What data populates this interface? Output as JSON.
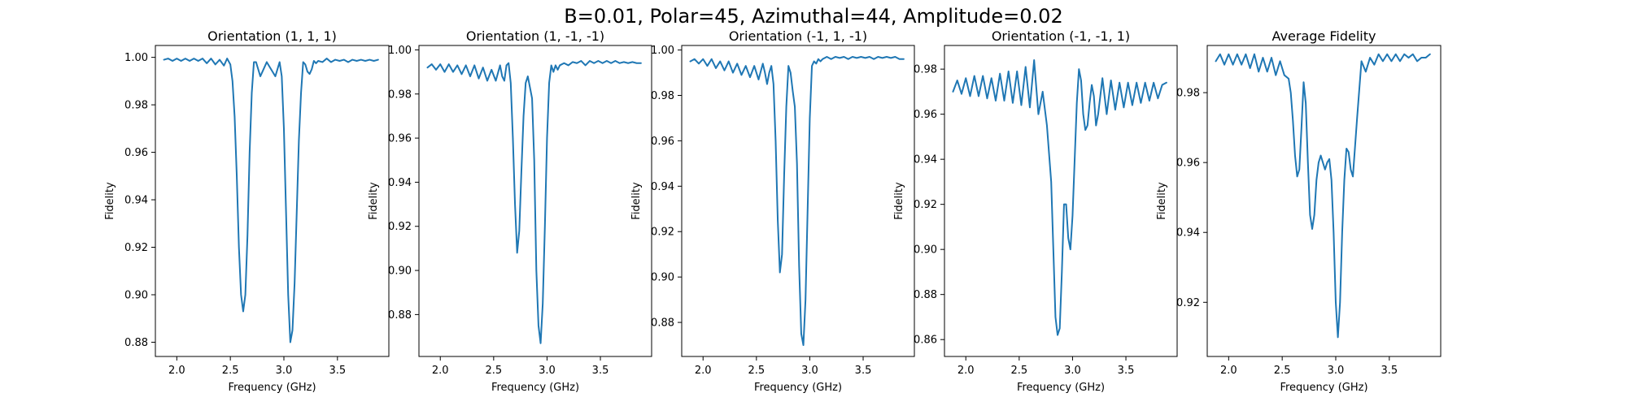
{
  "figure": {
    "title": "B=0.01, Polar=45, Azimuthal=44, Amplitude=0.02"
  },
  "colors": {
    "line": "#1f77b4",
    "axes": "#000000",
    "background": "#ffffff"
  },
  "chart_data": [
    {
      "type": "line",
      "title": "Orientation (1, 1, 1)",
      "xlabel": "Frequency (GHz)",
      "ylabel": "Fidelity",
      "xlim": [
        1.8,
        3.98
      ],
      "ylim": [
        0.874,
        1.005
      ],
      "xticks": [
        2.0,
        2.5,
        3.0,
        3.5
      ],
      "yticks": [
        0.88,
        0.9,
        0.92,
        0.94,
        0.96,
        0.98,
        1.0
      ],
      "grid": false,
      "series": [
        {
          "x": [
            1.88,
            1.92,
            1.96,
            2.0,
            2.04,
            2.08,
            2.12,
            2.16,
            2.2,
            2.24,
            2.28,
            2.32,
            2.36,
            2.4,
            2.44,
            2.47,
            2.5,
            2.52,
            2.54,
            2.56,
            2.58,
            2.6,
            2.62,
            2.64,
            2.66,
            2.68,
            2.7,
            2.72,
            2.74,
            2.76,
            2.78,
            2.8,
            2.84,
            2.88,
            2.92,
            2.96,
            2.98,
            3.0,
            3.02,
            3.04,
            3.06,
            3.08,
            3.1,
            3.12,
            3.14,
            3.16,
            3.18,
            3.2,
            3.22,
            3.24,
            3.26,
            3.28,
            3.3,
            3.32,
            3.36,
            3.4,
            3.44,
            3.48,
            3.52,
            3.56,
            3.6,
            3.64,
            3.68,
            3.72,
            3.76,
            3.8,
            3.84,
            3.88
          ],
          "y": [
            0.999,
            0.9995,
            0.9985,
            0.9995,
            0.9985,
            0.9995,
            0.9985,
            0.9995,
            0.9985,
            0.9995,
            0.9975,
            0.9995,
            0.997,
            0.999,
            0.9965,
            0.9995,
            0.997,
            0.99,
            0.975,
            0.95,
            0.92,
            0.9,
            0.893,
            0.9,
            0.925,
            0.96,
            0.985,
            0.998,
            0.998,
            0.995,
            0.992,
            0.994,
            0.998,
            0.995,
            0.992,
            0.998,
            0.992,
            0.97,
            0.935,
            0.9,
            0.88,
            0.885,
            0.905,
            0.935,
            0.965,
            0.985,
            0.998,
            0.997,
            0.994,
            0.993,
            0.995,
            0.9985,
            0.9975,
            0.9985,
            0.998,
            0.9995,
            0.998,
            0.999,
            0.9985,
            0.999,
            0.998,
            0.999,
            0.9985,
            0.999,
            0.9985,
            0.999,
            0.9985,
            0.999
          ]
        }
      ]
    },
    {
      "type": "line",
      "title": "Orientation (1, -1, -1)",
      "xlabel": "Frequency (GHz)",
      "ylabel": "Fidelity",
      "xlim": [
        1.8,
        3.98
      ],
      "ylim": [
        0.861,
        1.002
      ],
      "xticks": [
        2.0,
        2.5,
        3.0,
        3.5
      ],
      "yticks": [
        0.88,
        0.9,
        0.92,
        0.94,
        0.96,
        0.98,
        1.0
      ],
      "grid": false,
      "series": [
        {
          "x": [
            1.88,
            1.92,
            1.96,
            2.0,
            2.04,
            2.08,
            2.12,
            2.16,
            2.2,
            2.24,
            2.28,
            2.32,
            2.36,
            2.4,
            2.44,
            2.48,
            2.52,
            2.56,
            2.58,
            2.6,
            2.62,
            2.64,
            2.66,
            2.68,
            2.7,
            2.72,
            2.74,
            2.76,
            2.78,
            2.8,
            2.82,
            2.84,
            2.86,
            2.88,
            2.9,
            2.92,
            2.94,
            2.96,
            2.98,
            3.0,
            3.02,
            3.04,
            3.06,
            3.08,
            3.1,
            3.12,
            3.16,
            3.2,
            3.24,
            3.28,
            3.32,
            3.36,
            3.4,
            3.44,
            3.48,
            3.52,
            3.56,
            3.6,
            3.64,
            3.68,
            3.72,
            3.76,
            3.8,
            3.84,
            3.88
          ],
          "y": [
            0.992,
            0.9935,
            0.991,
            0.9935,
            0.99,
            0.9935,
            0.99,
            0.993,
            0.989,
            0.993,
            0.988,
            0.993,
            0.987,
            0.992,
            0.986,
            0.991,
            0.986,
            0.993,
            0.988,
            0.986,
            0.993,
            0.994,
            0.985,
            0.96,
            0.93,
            0.908,
            0.918,
            0.945,
            0.97,
            0.985,
            0.988,
            0.983,
            0.978,
            0.95,
            0.9,
            0.875,
            0.867,
            0.885,
            0.92,
            0.96,
            0.985,
            0.993,
            0.99,
            0.993,
            0.991,
            0.993,
            0.994,
            0.993,
            0.9945,
            0.994,
            0.995,
            0.993,
            0.995,
            0.994,
            0.995,
            0.994,
            0.995,
            0.994,
            0.995,
            0.994,
            0.9945,
            0.994,
            0.9945,
            0.994,
            0.994
          ]
        }
      ]
    },
    {
      "type": "line",
      "title": "Orientation (-1, 1, -1)",
      "xlabel": "Frequency (GHz)",
      "ylabel": "Fidelity",
      "xlim": [
        1.8,
        3.98
      ],
      "ylim": [
        0.865,
        1.002
      ],
      "xticks": [
        2.0,
        2.5,
        3.0,
        3.5
      ],
      "yticks": [
        0.88,
        0.9,
        0.92,
        0.94,
        0.96,
        0.98,
        1.0
      ],
      "grid": false,
      "series": [
        {
          "x": [
            1.88,
            1.92,
            1.96,
            2.0,
            2.04,
            2.08,
            2.12,
            2.16,
            2.2,
            2.24,
            2.28,
            2.32,
            2.36,
            2.4,
            2.44,
            2.48,
            2.52,
            2.56,
            2.58,
            2.6,
            2.62,
            2.64,
            2.66,
            2.68,
            2.7,
            2.72,
            2.74,
            2.76,
            2.78,
            2.8,
            2.82,
            2.84,
            2.86,
            2.88,
            2.9,
            2.92,
            2.94,
            2.96,
            2.98,
            3.0,
            3.02,
            3.04,
            3.06,
            3.08,
            3.1,
            3.12,
            3.16,
            3.2,
            3.24,
            3.28,
            3.32,
            3.36,
            3.4,
            3.44,
            3.48,
            3.52,
            3.56,
            3.6,
            3.64,
            3.68,
            3.72,
            3.76,
            3.8,
            3.84,
            3.88
          ],
          "y": [
            0.995,
            0.996,
            0.994,
            0.996,
            0.993,
            0.996,
            0.992,
            0.995,
            0.991,
            0.995,
            0.99,
            0.994,
            0.989,
            0.993,
            0.988,
            0.993,
            0.987,
            0.994,
            0.99,
            0.985,
            0.99,
            0.993,
            0.985,
            0.96,
            0.925,
            0.902,
            0.91,
            0.945,
            0.975,
            0.993,
            0.99,
            0.982,
            0.975,
            0.95,
            0.905,
            0.875,
            0.87,
            0.89,
            0.93,
            0.97,
            0.993,
            0.995,
            0.994,
            0.996,
            0.995,
            0.996,
            0.997,
            0.996,
            0.997,
            0.9965,
            0.997,
            0.996,
            0.997,
            0.9965,
            0.997,
            0.9965,
            0.997,
            0.996,
            0.997,
            0.9965,
            0.997,
            0.9965,
            0.997,
            0.996,
            0.996
          ]
        }
      ]
    },
    {
      "type": "line",
      "title": "Orientation (-1, -1, 1)",
      "xlabel": "Frequency (GHz)",
      "ylabel": "Fidelity",
      "xlim": [
        1.8,
        3.98
      ],
      "ylim": [
        0.8525,
        0.9905
      ],
      "xticks": [
        2.0,
        2.5,
        3.0,
        3.5
      ],
      "yticks": [
        0.86,
        0.88,
        0.9,
        0.92,
        0.94,
        0.96,
        0.98
      ],
      "grid": false,
      "series": [
        {
          "x": [
            1.88,
            1.92,
            1.96,
            2.0,
            2.04,
            2.08,
            2.12,
            2.16,
            2.2,
            2.24,
            2.28,
            2.32,
            2.36,
            2.4,
            2.44,
            2.48,
            2.52,
            2.56,
            2.6,
            2.64,
            2.68,
            2.72,
            2.76,
            2.8,
            2.82,
            2.84,
            2.86,
            2.88,
            2.9,
            2.92,
            2.94,
            2.96,
            2.98,
            3.0,
            3.02,
            3.04,
            3.06,
            3.08,
            3.1,
            3.12,
            3.14,
            3.16,
            3.18,
            3.2,
            3.22,
            3.24,
            3.28,
            3.32,
            3.36,
            3.4,
            3.44,
            3.48,
            3.52,
            3.56,
            3.6,
            3.64,
            3.68,
            3.72,
            3.76,
            3.8,
            3.84,
            3.88
          ],
          "y": [
            0.97,
            0.975,
            0.969,
            0.976,
            0.968,
            0.977,
            0.968,
            0.977,
            0.967,
            0.976,
            0.966,
            0.978,
            0.966,
            0.979,
            0.965,
            0.979,
            0.964,
            0.981,
            0.963,
            0.984,
            0.96,
            0.97,
            0.955,
            0.93,
            0.9,
            0.87,
            0.862,
            0.865,
            0.89,
            0.92,
            0.92,
            0.905,
            0.9,
            0.915,
            0.94,
            0.965,
            0.98,
            0.975,
            0.96,
            0.953,
            0.955,
            0.965,
            0.973,
            0.968,
            0.955,
            0.96,
            0.976,
            0.96,
            0.975,
            0.962,
            0.974,
            0.963,
            0.974,
            0.964,
            0.974,
            0.965,
            0.974,
            0.966,
            0.974,
            0.967,
            0.973,
            0.974
          ]
        }
      ]
    },
    {
      "type": "line",
      "title": "Average Fidelity",
      "xlabel": "Frequency (GHz)",
      "ylabel": "Fidelity",
      "xlim": [
        1.8,
        3.98
      ],
      "ylim": [
        0.9045,
        0.9935
      ],
      "xticks": [
        2.0,
        2.5,
        3.0,
        3.5
      ],
      "yticks": [
        0.92,
        0.94,
        0.96,
        0.98
      ],
      "grid": false,
      "series": [
        {
          "x": [
            1.88,
            1.92,
            1.96,
            2.0,
            2.04,
            2.08,
            2.12,
            2.16,
            2.2,
            2.24,
            2.28,
            2.32,
            2.36,
            2.4,
            2.44,
            2.48,
            2.52,
            2.56,
            2.58,
            2.6,
            2.62,
            2.64,
            2.66,
            2.68,
            2.7,
            2.72,
            2.74,
            2.76,
            2.78,
            2.8,
            2.82,
            2.84,
            2.86,
            2.88,
            2.9,
            2.92,
            2.94,
            2.96,
            2.98,
            3.0,
            3.02,
            3.04,
            3.06,
            3.08,
            3.1,
            3.12,
            3.14,
            3.16,
            3.2,
            3.24,
            3.28,
            3.32,
            3.36,
            3.4,
            3.44,
            3.48,
            3.52,
            3.56,
            3.6,
            3.64,
            3.68,
            3.72,
            3.76,
            3.8,
            3.84,
            3.88
          ],
          "y": [
            0.989,
            0.991,
            0.988,
            0.991,
            0.988,
            0.991,
            0.988,
            0.991,
            0.987,
            0.991,
            0.986,
            0.99,
            0.986,
            0.99,
            0.985,
            0.989,
            0.985,
            0.984,
            0.98,
            0.972,
            0.962,
            0.956,
            0.958,
            0.97,
            0.983,
            0.977,
            0.96,
            0.945,
            0.941,
            0.945,
            0.955,
            0.96,
            0.962,
            0.96,
            0.958,
            0.96,
            0.961,
            0.955,
            0.94,
            0.92,
            0.91,
            0.92,
            0.94,
            0.955,
            0.964,
            0.963,
            0.958,
            0.956,
            0.973,
            0.989,
            0.986,
            0.99,
            0.988,
            0.991,
            0.989,
            0.991,
            0.989,
            0.991,
            0.989,
            0.991,
            0.99,
            0.991,
            0.989,
            0.99,
            0.99,
            0.991
          ]
        }
      ]
    }
  ]
}
